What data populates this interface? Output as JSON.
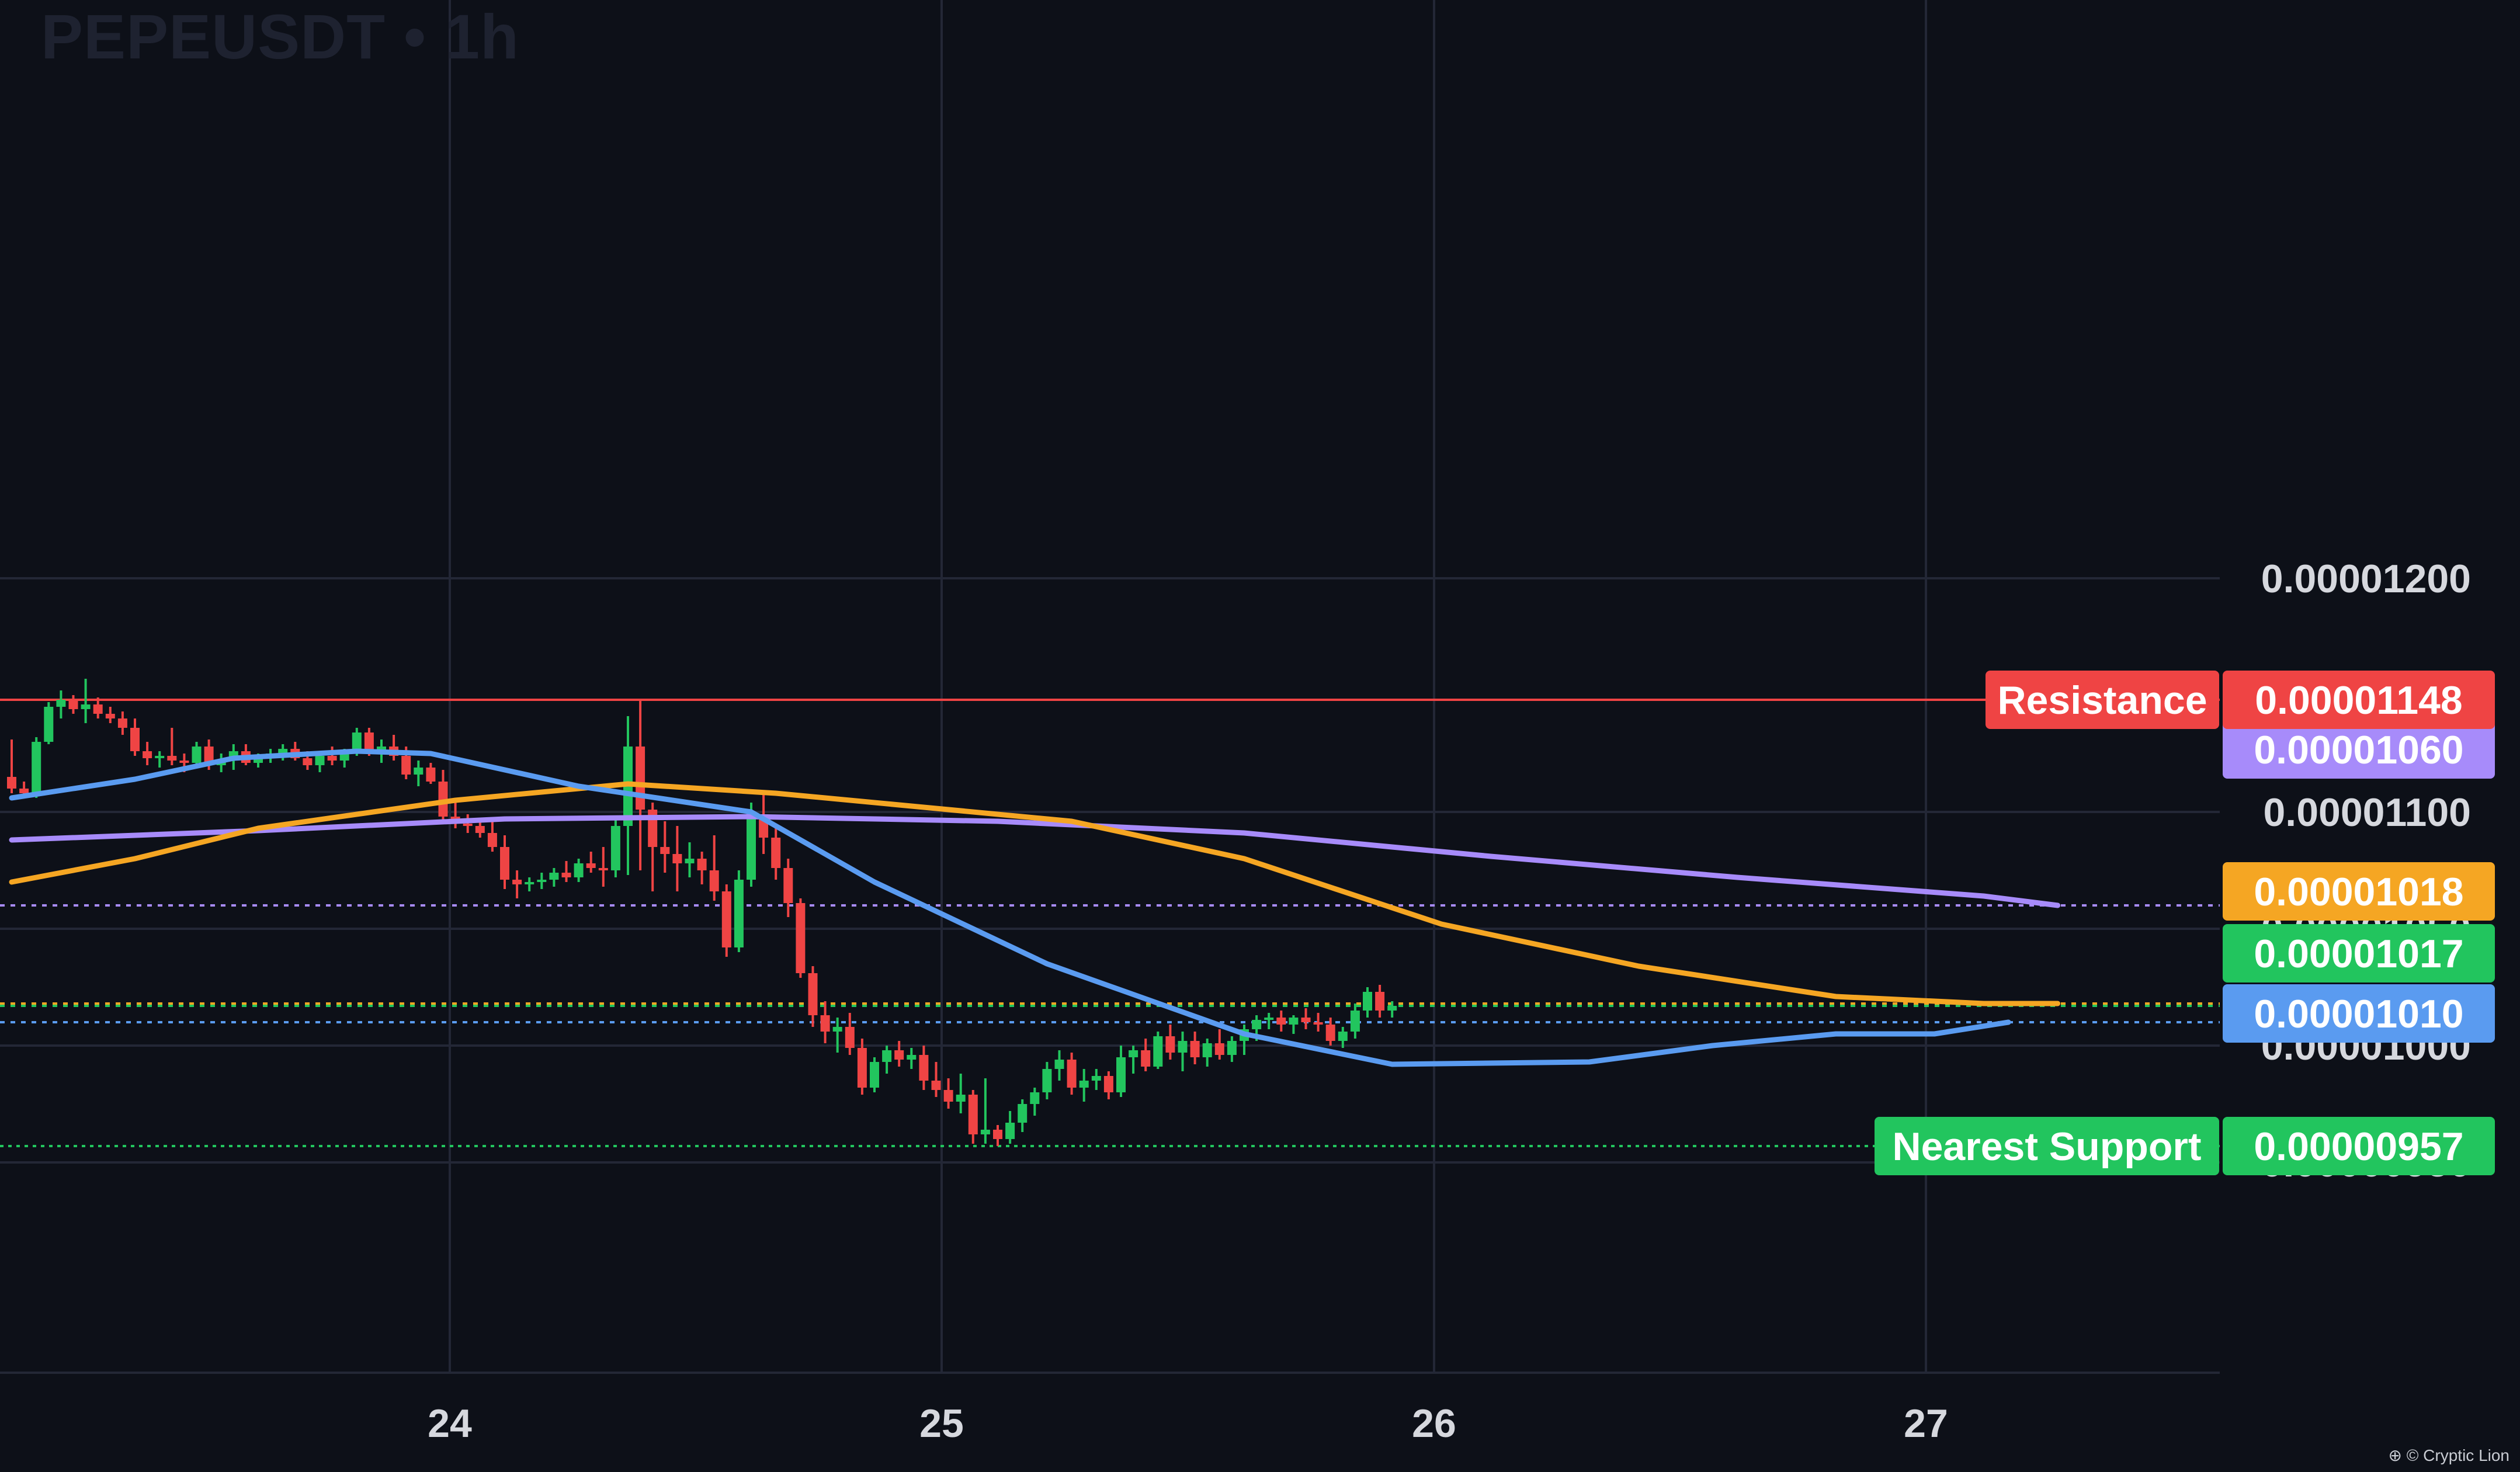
{
  "header": {
    "symbol": "PEPEUSDT",
    "separator": "•",
    "interval": "1h"
  },
  "watermark": "⊕ © Cryptic Lion",
  "colors": {
    "background": "#0d1018",
    "grid": "#232736",
    "up": "#22c55e",
    "down": "#ef4444",
    "ma_fast": "#5a9bf0",
    "ma_mid": "#f5a623",
    "ma_slow": "#a78bfa",
    "resistance": "#ef4444",
    "support": "#22c55e",
    "axis_text": "#d6d8de"
  },
  "chart_data": {
    "type": "candlestick",
    "title": "PEPEUSDT • 1h",
    "ylim": [
      9.2e-06,
      1.24e-05
    ],
    "x_ticks": [
      "24",
      "25",
      "26",
      "27"
    ],
    "y_ticks": [
      "0.00001200",
      "0.00001100",
      "0.00001050",
      "0.00001000",
      "0.00000950"
    ],
    "price_tags": [
      {
        "value": "0.00001060",
        "color": "#a78bfa",
        "level": 1.06e-05
      },
      {
        "value": "0.00001018",
        "color": "#f5a623",
        "level": 1.018e-05
      },
      {
        "value": "0.00001017",
        "color": "#22c55e",
        "level": 1.017e-05
      },
      {
        "value": "0.00001010",
        "color": "#5a9bf0",
        "level": 1.01e-05
      }
    ],
    "levels": [
      {
        "label": "Resistance",
        "value": "0.00001148",
        "level": 1.148e-05,
        "color": "#ef4444"
      },
      {
        "label": "Nearest Support",
        "value": "0.00000957",
        "level": 9.57e-06,
        "color": "#22c55e"
      }
    ],
    "candles": [
      [
        1.115,
        1.131,
        1.108,
        1.11
      ],
      [
        1.11,
        1.113,
        1.106,
        1.108
      ],
      [
        1.108,
        1.132,
        1.106,
        1.13
      ],
      [
        1.13,
        1.147,
        1.129,
        1.145
      ],
      [
        1.145,
        1.152,
        1.14,
        1.148
      ],
      [
        1.148,
        1.15,
        1.142,
        1.144
      ],
      [
        1.144,
        1.157,
        1.138,
        1.146
      ],
      [
        1.146,
        1.149,
        1.14,
        1.142
      ],
      [
        1.142,
        1.145,
        1.138,
        1.14
      ],
      [
        1.14,
        1.143,
        1.133,
        1.136
      ],
      [
        1.136,
        1.14,
        1.124,
        1.126
      ],
      [
        1.126,
        1.13,
        1.12,
        1.123
      ],
      [
        1.123,
        1.126,
        1.119,
        1.124
      ],
      [
        1.124,
        1.136,
        1.12,
        1.122
      ],
      [
        1.122,
        1.125,
        1.117,
        1.121
      ],
      [
        1.121,
        1.13,
        1.12,
        1.128
      ],
      [
        1.128,
        1.131,
        1.118,
        1.12
      ],
      [
        1.12,
        1.125,
        1.117,
        1.122
      ],
      [
        1.122,
        1.129,
        1.118,
        1.126
      ],
      [
        1.126,
        1.129,
        1.12,
        1.121
      ],
      [
        1.121,
        1.125,
        1.119,
        1.124
      ],
      [
        1.124,
        1.127,
        1.121,
        1.125
      ],
      [
        1.125,
        1.129,
        1.122,
        1.127
      ],
      [
        1.127,
        1.13,
        1.122,
        1.123
      ],
      [
        1.123,
        1.126,
        1.118,
        1.12
      ],
      [
        1.12,
        1.126,
        1.117,
        1.124
      ],
      [
        1.124,
        1.128,
        1.12,
        1.122
      ],
      [
        1.122,
        1.127,
        1.119,
        1.126
      ],
      [
        1.126,
        1.136,
        1.124,
        1.134
      ],
      [
        1.134,
        1.136,
        1.124,
        1.125
      ],
      [
        1.125,
        1.131,
        1.121,
        1.128
      ],
      [
        1.128,
        1.133,
        1.122,
        1.124
      ],
      [
        1.124,
        1.128,
        1.114,
        1.116
      ],
      [
        1.116,
        1.122,
        1.111,
        1.119
      ],
      [
        1.119,
        1.121,
        1.112,
        1.113
      ],
      [
        1.113,
        1.118,
        1.096,
        1.098
      ],
      [
        1.098,
        1.106,
        1.093,
        1.095
      ],
      [
        1.095,
        1.099,
        1.091,
        1.094
      ],
      [
        1.094,
        1.097,
        1.089,
        1.091
      ],
      [
        1.091,
        1.096,
        1.083,
        1.085
      ],
      [
        1.085,
        1.09,
        1.067,
        1.071
      ],
      [
        1.071,
        1.075,
        1.063,
        1.069
      ],
      [
        1.069,
        1.072,
        1.066,
        1.07
      ],
      [
        1.07,
        1.074,
        1.067,
        1.071
      ],
      [
        1.071,
        1.076,
        1.068,
        1.074
      ],
      [
        1.074,
        1.079,
        1.07,
        1.072
      ],
      [
        1.072,
        1.08,
        1.07,
        1.078
      ],
      [
        1.078,
        1.083,
        1.074,
        1.076
      ],
      [
        1.076,
        1.085,
        1.068,
        1.075
      ],
      [
        1.075,
        1.098,
        1.072,
        1.094
      ],
      [
        1.094,
        1.141,
        1.073,
        1.128
      ],
      [
        1.128,
        1.148,
        1.075,
        1.101
      ],
      [
        1.101,
        1.104,
        1.066,
        1.085
      ],
      [
        1.085,
        1.096,
        1.074,
        1.082
      ],
      [
        1.082,
        1.094,
        1.066,
        1.078
      ],
      [
        1.078,
        1.087,
        1.072,
        1.08
      ],
      [
        1.08,
        1.083,
        1.069,
        1.075
      ],
      [
        1.075,
        1.09,
        1.062,
        1.066
      ],
      [
        1.066,
        1.069,
        1.038,
        1.042
      ],
      [
        1.042,
        1.075,
        1.04,
        1.071
      ],
      [
        1.071,
        1.104,
        1.068,
        1.099
      ],
      [
        1.099,
        1.108,
        1.082,
        1.089
      ],
      [
        1.089,
        1.094,
        1.071,
        1.076
      ],
      [
        1.076,
        1.08,
        1.055,
        1.061
      ],
      [
        1.061,
        1.063,
        1.029,
        1.031
      ],
      [
        1.031,
        1.034,
        1.008,
        1.013
      ],
      [
        1.013,
        1.019,
        1.001,
        1.006
      ],
      [
        1.006,
        1.012,
        0.997,
        1.008
      ],
      [
        1.008,
        1.014,
        0.996,
        0.999
      ],
      [
        0.999,
        1.003,
        0.979,
        0.982
      ],
      [
        0.982,
        0.995,
        0.98,
        0.993
      ],
      [
        0.993,
        1.0,
        0.988,
        0.998
      ],
      [
        0.998,
        1.002,
        0.991,
        0.994
      ],
      [
        0.994,
        0.999,
        0.99,
        0.996
      ],
      [
        0.996,
        1.0,
        0.981,
        0.985
      ],
      [
        0.985,
        0.993,
        0.978,
        0.981
      ],
      [
        0.981,
        0.986,
        0.973,
        0.976
      ],
      [
        0.976,
        0.988,
        0.971,
        0.979
      ],
      [
        0.979,
        0.981,
        0.958,
        0.962
      ],
      [
        0.962,
        0.986,
        0.958,
        0.964
      ],
      [
        0.964,
        0.966,
        0.957,
        0.96
      ],
      [
        0.96,
        0.972,
        0.958,
        0.967
      ],
      [
        0.967,
        0.977,
        0.963,
        0.975
      ],
      [
        0.975,
        0.982,
        0.97,
        0.98
      ],
      [
        0.98,
        0.993,
        0.977,
        0.99
      ],
      [
        0.99,
        0.998,
        0.985,
        0.994
      ],
      [
        0.994,
        0.997,
        0.979,
        0.982
      ],
      [
        0.982,
        0.99,
        0.976,
        0.985
      ],
      [
        0.985,
        0.99,
        0.981,
        0.987
      ],
      [
        0.987,
        0.989,
        0.977,
        0.98
      ],
      [
        0.98,
        1.0,
        0.978,
        0.995
      ],
      [
        0.995,
        1.0,
        0.988,
        0.998
      ],
      [
        0.998,
        1.003,
        0.989,
        0.991
      ],
      [
        0.991,
        1.006,
        0.99,
        1.004
      ],
      [
        1.004,
        1.009,
        0.994,
        0.997
      ],
      [
        0.997,
        1.006,
        0.989,
        1.002
      ],
      [
        1.002,
        1.006,
        0.992,
        0.995
      ],
      [
        0.995,
        1.003,
        0.991,
        1.001
      ],
      [
        1.001,
        1.007,
        0.994,
        0.996
      ],
      [
        0.996,
        1.004,
        0.993,
        1.002
      ],
      [
        1.002,
        1.009,
        0.996,
        1.007
      ],
      [
        1.007,
        1.013,
        1.002,
        1.011
      ],
      [
        1.011,
        1.014,
        1.007,
        1.012
      ],
      [
        1.012,
        1.015,
        1.006,
        1.009
      ],
      [
        1.009,
        1.013,
        1.005,
        1.012
      ],
      [
        1.012,
        1.016,
        1.007,
        1.01
      ],
      [
        1.01,
        1.014,
        1.006,
        1.009
      ],
      [
        1.009,
        1.012,
        1.0,
        1.002
      ],
      [
        1.002,
        1.008,
        0.999,
        1.006
      ],
      [
        1.006,
        1.018,
        1.003,
        1.015
      ],
      [
        1.015,
        1.025,
        1.012,
        1.023
      ],
      [
        1.023,
        1.026,
        1.012,
        1.015
      ],
      [
        1.015,
        1.019,
        1.012,
        1.017
      ]
    ],
    "ma_fast": [
      [
        0,
        1.106
      ],
      [
        10,
        1.114
      ],
      [
        18,
        1.123
      ],
      [
        28,
        1.126
      ],
      [
        34,
        1.125
      ],
      [
        46,
        1.111
      ],
      [
        60,
        1.1
      ],
      [
        70,
        1.07
      ],
      [
        84,
        1.035
      ],
      [
        100,
        1.005
      ],
      [
        112,
        0.992
      ],
      [
        128,
        0.993
      ],
      [
        138,
        1.0
      ],
      [
        148,
        1.005
      ],
      [
        156,
        1.005
      ],
      [
        162,
        1.01
      ]
    ],
    "ma_mid": [
      [
        0,
        1.07
      ],
      [
        10,
        1.08
      ],
      [
        20,
        1.093
      ],
      [
        36,
        1.105
      ],
      [
        50,
        1.112
      ],
      [
        62,
        1.108
      ],
      [
        74,
        1.102
      ],
      [
        86,
        1.096
      ],
      [
        100,
        1.08
      ],
      [
        116,
        1.052
      ],
      [
        132,
        1.034
      ],
      [
        148,
        1.021
      ],
      [
        160,
        1.018
      ],
      [
        166,
        1.018
      ]
    ],
    "ma_slow": [
      [
        0,
        1.088
      ],
      [
        20,
        1.092
      ],
      [
        40,
        1.097
      ],
      [
        60,
        1.098
      ],
      [
        80,
        1.096
      ],
      [
        100,
        1.091
      ],
      [
        120,
        1.081
      ],
      [
        140,
        1.072
      ],
      [
        160,
        1.064
      ],
      [
        166,
        1.06
      ]
    ]
  }
}
